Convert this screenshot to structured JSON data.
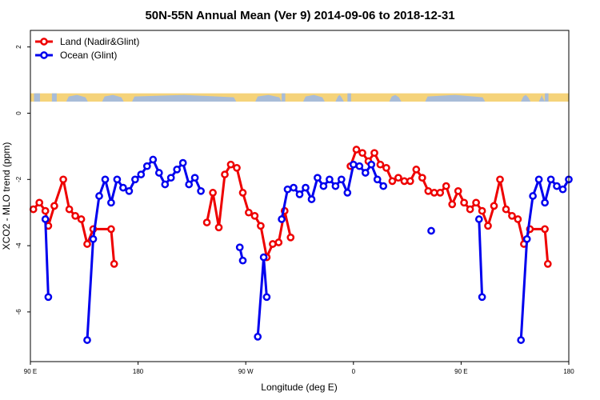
{
  "colors": {
    "land": "#ee0000",
    "ocean": "#0000ee",
    "land_mask": "#f5d37a",
    "ocean_mask": "#a8bcd8"
  },
  "chart_data": {
    "type": "line",
    "title": "50N-55N Annual Mean (Ver 9)   2014-09-06 to 2018-12-31",
    "xlabel": "Longitude (deg E)",
    "ylabel": "XCO2 - MLO trend (ppm)",
    "xlim": [
      90,
      540
    ],
    "ylim": [
      -7.5,
      2.5
    ],
    "x_ticks": [
      {
        "value": 90,
        "label": "90 E"
      },
      {
        "value": 180,
        "label": "180"
      },
      {
        "value": 270,
        "label": "90 W"
      },
      {
        "value": 360,
        "label": "0"
      },
      {
        "value": 450,
        "label": "90 E"
      },
      {
        "value": 540,
        "label": "180"
      }
    ],
    "y_ticks": [
      {
        "value": 2,
        "label": "2"
      },
      {
        "value": 0,
        "label": "0"
      },
      {
        "value": -2,
        "label": "-2"
      },
      {
        "value": -4,
        "label": "-4"
      },
      {
        "value": -6,
        "label": "-6"
      }
    ],
    "legend_position": "top-left",
    "land_mask_band": {
      "y_top": 0.6,
      "y_bottom": 0.35
    },
    "series": [
      {
        "name": "Land (Nadir&Glint)",
        "key": "land",
        "segments": [
          [
            [
              92.5,
              -2.9
            ],
            [
              97.5,
              -2.7
            ],
            [
              102.5,
              -2.95
            ],
            [
              105,
              -3.4
            ],
            [
              110,
              -2.8
            ],
            [
              117.5,
              -2.0
            ],
            [
              122.5,
              -2.9
            ],
            [
              127.5,
              -3.1
            ],
            [
              132.5,
              -3.2
            ],
            [
              137.5,
              -3.95
            ],
            [
              142.5,
              -3.5
            ],
            [
              157.5,
              -3.5
            ],
            [
              160,
              -4.55
            ]
          ],
          [
            [
              237.5,
              -3.3
            ],
            [
              242.5,
              -2.4
            ],
            [
              247.5,
              -3.45
            ],
            [
              252.5,
              -1.85
            ],
            [
              257.5,
              -1.55
            ],
            [
              262.5,
              -1.65
            ],
            [
              267.5,
              -2.4
            ],
            [
              272.5,
              -3.0
            ],
            [
              277.5,
              -3.1
            ],
            [
              282.5,
              -3.4
            ],
            [
              287.5,
              -4.35
            ],
            [
              292.5,
              -3.95
            ],
            [
              297.5,
              -3.9
            ],
            [
              302.5,
              -2.95
            ],
            [
              307.5,
              -3.75
            ]
          ],
          [
            [
              357.5,
              -1.6
            ],
            [
              362.5,
              -1.1
            ],
            [
              367.5,
              -1.2
            ],
            [
              372.5,
              -1.45
            ],
            [
              377.5,
              -1.2
            ],
            [
              382.5,
              -1.55
            ],
            [
              387.5,
              -1.65
            ],
            [
              392.5,
              -2.05
            ],
            [
              397.5,
              -1.95
            ],
            [
              402.5,
              -2.05
            ],
            [
              407.5,
              -2.05
            ],
            [
              412.5,
              -1.7
            ],
            [
              417.5,
              -1.95
            ],
            [
              422.5,
              -2.35
            ],
            [
              427.5,
              -2.4
            ],
            [
              432.5,
              -2.4
            ],
            [
              437.5,
              -2.2
            ],
            [
              442.5,
              -2.75
            ],
            [
              447.5,
              -2.35
            ],
            [
              452.5,
              -2.7
            ],
            [
              457.5,
              -2.9
            ],
            [
              462.5,
              -2.7
            ],
            [
              467.5,
              -2.95
            ],
            [
              472.5,
              -3.4
            ],
            [
              477.5,
              -2.8
            ],
            [
              482.5,
              -2.0
            ],
            [
              487.5,
              -2.9
            ],
            [
              492.5,
              -3.1
            ],
            [
              497.5,
              -3.2
            ],
            [
              502.5,
              -3.95
            ],
            [
              507.5,
              -3.5
            ],
            [
              520,
              -3.5
            ],
            [
              522.5,
              -4.55
            ]
          ]
        ]
      },
      {
        "name": "Ocean (Glint)",
        "key": "ocean",
        "segments": [
          [
            [
              102.5,
              -3.2
            ],
            [
              105,
              -5.55
            ]
          ],
          [
            [
              137.5,
              -6.85
            ],
            [
              142.5,
              -3.8
            ],
            [
              147.5,
              -2.5
            ],
            [
              152.5,
              -2.0
            ],
            [
              157.5,
              -2.7
            ],
            [
              162.5,
              -2.0
            ],
            [
              167.5,
              -2.25
            ],
            [
              172.5,
              -2.35
            ],
            [
              177.5,
              -2.0
            ],
            [
              182.5,
              -1.85
            ],
            [
              187.5,
              -1.6
            ],
            [
              192.5,
              -1.4
            ],
            [
              197.5,
              -1.8
            ],
            [
              202.5,
              -2.15
            ],
            [
              207.5,
              -1.95
            ],
            [
              212.5,
              -1.7
            ],
            [
              217.5,
              -1.5
            ],
            [
              222.5,
              -2.15
            ],
            [
              227.5,
              -1.95
            ],
            [
              232.5,
              -2.35
            ]
          ],
          [
            [
              265,
              -4.05
            ],
            [
              267.5,
              -4.45
            ]
          ],
          [
            [
              280,
              -6.75
            ],
            [
              285,
              -4.35
            ],
            [
              287.5,
              -5.55
            ]
          ],
          [
            [
              300,
              -3.2
            ],
            [
              305,
              -2.3
            ],
            [
              310,
              -2.25
            ],
            [
              315,
              -2.45
            ],
            [
              320,
              -2.25
            ],
            [
              325,
              -2.6
            ],
            [
              330,
              -1.95
            ],
            [
              335,
              -2.2
            ],
            [
              340,
              -2.0
            ],
            [
              345,
              -2.2
            ],
            [
              350,
              -2.0
            ],
            [
              355,
              -2.4
            ],
            [
              360,
              -1.55
            ],
            [
              365,
              -1.6
            ],
            [
              370,
              -1.8
            ],
            [
              375,
              -1.55
            ],
            [
              380,
              -2.0
            ],
            [
              385,
              -2.2
            ]
          ],
          [
            [
              425,
              -3.55
            ]
          ],
          [
            [
              465,
              -3.2
            ],
            [
              467.5,
              -5.55
            ]
          ],
          [
            [
              500,
              -6.85
            ],
            [
              505,
              -3.8
            ],
            [
              510,
              -2.5
            ],
            [
              515,
              -2.0
            ],
            [
              520,
              -2.7
            ],
            [
              525,
              -2.0
            ],
            [
              530,
              -2.2
            ],
            [
              535,
              -2.3
            ],
            [
              540,
              -2.0
            ]
          ]
        ]
      }
    ]
  }
}
